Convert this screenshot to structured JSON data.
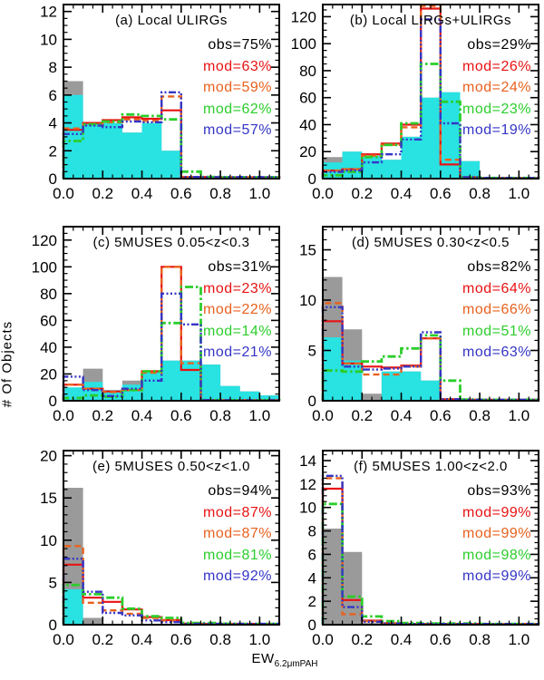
{
  "figure": {
    "ylabel": "# Of Objects",
    "xlabel_main": "EW",
    "xlabel_sub": "6.2μmPAH"
  },
  "colors": {
    "black": "#000000",
    "gray": "#9a9a9a",
    "cyan": "#29e2e2",
    "red": "#e81212",
    "orange": "#e8611e",
    "green": "#2bce2b",
    "blue": "#3535c6"
  },
  "chart_data": [
    {
      "id": "a",
      "type": "histogram",
      "title": "(a) Local ULIRGs",
      "xlim": [
        0,
        1.1
      ],
      "ylim": [
        0,
        12.5
      ],
      "bin_start": 0,
      "bin_width": 0.1,
      "xticks": [
        0,
        0.2,
        0.4,
        0.6,
        0.8,
        1.0
      ],
      "yticks": [
        0,
        2,
        4,
        6,
        8,
        10,
        12
      ],
      "x_minor": 0.05,
      "y_minor": 0.5,
      "series": [
        {
          "name": "obs-all-gray",
          "style": "fill",
          "color_key": "gray",
          "values": [
            7,
            4,
            4,
            3.3,
            4,
            2,
            0,
            0,
            0,
            0,
            0
          ]
        },
        {
          "name": "obs-sub-cyan",
          "style": "fill",
          "color_key": "cyan",
          "values": [
            6,
            4,
            4,
            3.3,
            4,
            2,
            0,
            0,
            0,
            0,
            0
          ]
        },
        {
          "name": "model-red",
          "style": "solid",
          "color_key": "red",
          "values": [
            3.5,
            4.0,
            4.2,
            4.4,
            4.3,
            4.9,
            0.12,
            0.12,
            0.1,
            0.1,
            0.1
          ]
        },
        {
          "name": "model-orange",
          "style": "dashed",
          "color_key": "orange",
          "values": [
            3.6,
            3.9,
            4.05,
            4.25,
            4.15,
            5.9,
            0.12,
            0.1,
            0.1,
            0.1,
            0.1
          ]
        },
        {
          "name": "model-green",
          "style": "dashdot",
          "color_key": "green",
          "values": [
            2.7,
            3.9,
            4.1,
            4.6,
            4.5,
            4.25,
            0.5,
            0.12,
            0.1,
            0.1,
            0.1
          ]
        },
        {
          "name": "model-blue",
          "style": "dashdotdotdot",
          "color_key": "blue",
          "values": [
            3.2,
            3.8,
            3.7,
            4.1,
            4.05,
            6.2,
            0.12,
            0.1,
            0.1,
            0.12,
            0.1
          ]
        }
      ],
      "legend": [
        {
          "label": "obs=75%",
          "color_key": "black"
        },
        {
          "label": "mod=63%",
          "color_key": "red"
        },
        {
          "label": "mod=59%",
          "color_key": "orange"
        },
        {
          "label": "mod=62%",
          "color_key": "green"
        },
        {
          "label": "mod=57%",
          "color_key": "blue"
        }
      ]
    },
    {
      "id": "b",
      "type": "histogram",
      "title": "(b) Local LIRGs+ULIRGs",
      "xlim": [
        0,
        1.1
      ],
      "ylim": [
        0,
        129
      ],
      "bin_start": 0,
      "bin_width": 0.1,
      "xticks": [
        0,
        0.2,
        0.4,
        0.6,
        0.8,
        1.0
      ],
      "yticks": [
        0,
        20,
        40,
        60,
        80,
        100,
        120
      ],
      "x_minor": 0.05,
      "y_minor": 5,
      "series": [
        {
          "name": "obs-all-gray",
          "style": "fill",
          "color_key": "gray",
          "values": [
            16,
            20,
            17,
            14,
            31,
            60,
            64,
            13,
            0,
            0,
            0
          ]
        },
        {
          "name": "obs-sub-cyan",
          "style": "fill",
          "color_key": "cyan",
          "values": [
            12,
            20,
            17,
            14,
            31,
            60,
            64,
            13,
            0,
            0,
            0
          ]
        },
        {
          "name": "model-red",
          "style": "solid",
          "color_key": "red",
          "values": [
            6,
            7,
            18,
            26,
            40,
            126,
            10.5,
            1,
            0.5,
            0.5,
            0.5
          ]
        },
        {
          "name": "model-orange",
          "style": "dashed",
          "color_key": "orange",
          "values": [
            6,
            7,
            17,
            25,
            38,
            128,
            14,
            1,
            0.5,
            0.5,
            0.5
          ]
        },
        {
          "name": "model-green",
          "style": "dashdot",
          "color_key": "green",
          "values": [
            2.5,
            5,
            16,
            25,
            41,
            85,
            57,
            1,
            0.5,
            0.5,
            0.5
          ]
        },
        {
          "name": "model-blue",
          "style": "dashdotdotdot",
          "color_key": "blue",
          "values": [
            5,
            6,
            12,
            18,
            29,
            118,
            41,
            1,
            0.5,
            0.5,
            0.5
          ]
        }
      ],
      "legend": [
        {
          "label": "obs=29%",
          "color_key": "black"
        },
        {
          "label": "mod=26%",
          "color_key": "red"
        },
        {
          "label": "mod=24%",
          "color_key": "orange"
        },
        {
          "label": "mod=23%",
          "color_key": "green"
        },
        {
          "label": "mod=19%",
          "color_key": "blue"
        }
      ]
    },
    {
      "id": "c",
      "type": "histogram",
      "title": "(c) 5MUSES 0.05<z<0.3",
      "xlim": [
        0,
        1.1
      ],
      "ylim": [
        0,
        130
      ],
      "bin_start": 0,
      "bin_width": 0.1,
      "xticks": [
        0,
        0.2,
        0.4,
        0.6,
        0.8,
        1.0
      ],
      "yticks": [
        0,
        20,
        40,
        60,
        80,
        100,
        120
      ],
      "x_minor": 0.05,
      "y_minor": 5,
      "series": [
        {
          "name": "obs-all-gray",
          "style": "fill",
          "color_key": "gray",
          "values": [
            8,
            24,
            4,
            15,
            22,
            30,
            30,
            27,
            11,
            7,
            4
          ]
        },
        {
          "name": "obs-sub-cyan",
          "style": "fill",
          "color_key": "cyan",
          "values": [
            10,
            14,
            8,
            12,
            22,
            30,
            30,
            27,
            11,
            7,
            4
          ]
        },
        {
          "name": "model-red",
          "style": "solid",
          "color_key": "red",
          "values": [
            12,
            9,
            7,
            8,
            22,
            100,
            23,
            0.5,
            0.4,
            0.4,
            0.4
          ]
        },
        {
          "name": "model-orange",
          "style": "dashed",
          "color_key": "orange",
          "values": [
            12,
            9,
            6.5,
            8,
            21,
            100,
            28,
            0.5,
            0.4,
            0.4,
            0.4
          ]
        },
        {
          "name": "model-green",
          "style": "dashdot",
          "color_key": "green",
          "values": [
            2,
            4,
            3,
            8,
            22,
            58,
            85,
            0.5,
            0.4,
            0.4,
            0.4
          ]
        },
        {
          "name": "model-blue",
          "style": "dashdotdotdot",
          "color_key": "blue",
          "values": [
            18,
            8,
            3.5,
            9,
            15,
            80,
            57,
            0.5,
            0.4,
            0.4,
            0.4
          ]
        }
      ],
      "legend": [
        {
          "label": "obs=31%",
          "color_key": "black"
        },
        {
          "label": "mod=23%",
          "color_key": "red"
        },
        {
          "label": "mod=22%",
          "color_key": "orange"
        },
        {
          "label": "mod=14%",
          "color_key": "green"
        },
        {
          "label": "mod=21%",
          "color_key": "blue"
        }
      ]
    },
    {
      "id": "d",
      "type": "histogram",
      "title": "(d) 5MUSES 0.30<z<0.5",
      "xlim": [
        0,
        1.1
      ],
      "ylim": [
        0,
        17.3
      ],
      "bin_start": 0,
      "bin_width": 0.1,
      "xticks": [
        0,
        0.2,
        0.4,
        0.6,
        0.8,
        1.0
      ],
      "yticks": [
        0,
        5,
        10,
        15
      ],
      "x_minor": 0.05,
      "y_minor": 1,
      "series": [
        {
          "name": "obs-all-gray",
          "style": "fill",
          "color_key": "gray",
          "values": [
            12.3,
            7.1,
            0.7,
            2.9,
            2.9,
            2,
            0,
            0,
            0,
            0,
            0
          ]
        },
        {
          "name": "obs-sub-cyan",
          "style": "fill",
          "color_key": "cyan",
          "values": [
            6.3,
            4,
            0,
            2.9,
            2.9,
            2,
            0,
            0,
            0,
            0,
            0
          ]
        },
        {
          "name": "model-red",
          "style": "solid",
          "color_key": "red",
          "values": [
            7.9,
            3.7,
            3.4,
            3.3,
            3.5,
            6.2,
            0.15,
            0.1,
            0.1,
            0.1,
            0.1
          ]
        },
        {
          "name": "model-orange",
          "style": "dashed",
          "color_key": "orange",
          "values": [
            9.7,
            3.7,
            2.6,
            2.6,
            3.4,
            6.2,
            0.15,
            0.1,
            0.1,
            0.1,
            0.1
          ]
        },
        {
          "name": "model-green",
          "style": "dashdot",
          "color_key": "green",
          "values": [
            3.0,
            2.9,
            3.9,
            4.4,
            5.2,
            6.5,
            2.0,
            0.12,
            0.1,
            0.1,
            0.1
          ]
        },
        {
          "name": "model-blue",
          "style": "dashdotdotdot",
          "color_key": "blue",
          "values": [
            9.3,
            3.4,
            3.1,
            3.2,
            3.4,
            6.8,
            0.15,
            0.1,
            0.1,
            0.1,
            0.1
          ]
        }
      ],
      "legend": [
        {
          "label": "obs=82%",
          "color_key": "black"
        },
        {
          "label": "mod=64%",
          "color_key": "red"
        },
        {
          "label": "mod=66%",
          "color_key": "orange"
        },
        {
          "label": "mod=51%",
          "color_key": "green"
        },
        {
          "label": "mod=63%",
          "color_key": "blue"
        }
      ]
    },
    {
      "id": "e",
      "type": "histogram",
      "title": "(e) 5MUSES 0.50<z<1.0",
      "xlim": [
        0,
        1.1
      ],
      "ylim": [
        0,
        20.6
      ],
      "bin_start": 0,
      "bin_width": 0.1,
      "xticks": [
        0,
        0.2,
        0.4,
        0.6,
        0.8,
        1.0
      ],
      "yticks": [
        0,
        5,
        10,
        15,
        20
      ],
      "x_minor": 0.05,
      "y_minor": 1,
      "series": [
        {
          "name": "obs-all-gray",
          "style": "fill",
          "color_key": "gray",
          "values": [
            16.2,
            0.8,
            0,
            0,
            0,
            0,
            0,
            0,
            0,
            0,
            0
          ]
        },
        {
          "name": "obs-sub-cyan",
          "style": "fill",
          "color_key": "cyan",
          "values": [
            4.2,
            0,
            0,
            0,
            0,
            0,
            0,
            0,
            0,
            0,
            0
          ]
        },
        {
          "name": "model-red",
          "style": "solid",
          "color_key": "red",
          "values": [
            7.1,
            3.2,
            2.7,
            1.8,
            0.9,
            0.55,
            0.12,
            0.1,
            0.1,
            0.1,
            0.1
          ]
        },
        {
          "name": "model-orange",
          "style": "dashed",
          "color_key": "orange",
          "values": [
            9.3,
            2.6,
            1.7,
            1.3,
            0.8,
            0.5,
            0.1,
            0.1,
            0.1,
            0.1,
            0.1
          ]
        },
        {
          "name": "model-green",
          "style": "dashdot",
          "color_key": "green",
          "values": [
            4.7,
            3.6,
            3.2,
            1.9,
            1.0,
            0.8,
            0.2,
            0.2,
            0.12,
            0.1,
            0.1
          ]
        },
        {
          "name": "model-blue",
          "style": "dashdotdotdot",
          "color_key": "blue",
          "values": [
            7.8,
            3.9,
            1.4,
            1.1,
            0.5,
            0.3,
            0.1,
            0.1,
            0.1,
            0.1,
            0.1
          ]
        }
      ],
      "legend": [
        {
          "label": "obs=94%",
          "color_key": "black"
        },
        {
          "label": "mod=87%",
          "color_key": "red"
        },
        {
          "label": "mod=87%",
          "color_key": "orange"
        },
        {
          "label": "mod=81%",
          "color_key": "green"
        },
        {
          "label": "mod=92%",
          "color_key": "blue"
        }
      ]
    },
    {
      "id": "f",
      "type": "histogram",
      "title": "(f) 5MUSES 1.00<z<2.0",
      "xlim": [
        0,
        1.1
      ],
      "ylim": [
        0,
        14.85
      ],
      "bin_start": 0,
      "bin_width": 0.1,
      "xticks": [
        0,
        0.2,
        0.4,
        0.6,
        0.8,
        1.0
      ],
      "yticks": [
        0,
        2,
        4,
        6,
        8,
        10,
        12,
        14
      ],
      "x_minor": 0.05,
      "y_minor": 0.5,
      "series": [
        {
          "name": "obs-all-gray",
          "style": "fill",
          "color_key": "gray",
          "values": [
            8.2,
            6.2,
            0.15,
            0,
            0,
            0,
            0,
            0,
            0,
            0,
            0
          ]
        },
        {
          "name": "obs-sub-cyan",
          "style": "fill",
          "color_key": "cyan",
          "values": [
            0,
            0,
            0,
            0,
            0,
            0,
            0,
            0,
            0,
            0,
            0
          ]
        },
        {
          "name": "model-red",
          "style": "solid",
          "color_key": "red",
          "values": [
            11.6,
            2.1,
            0.35,
            0.12,
            0.06,
            0.06,
            0.06,
            0.06,
            0.06,
            0.06,
            0.06
          ]
        },
        {
          "name": "model-orange",
          "style": "dashed",
          "color_key": "orange",
          "values": [
            12.5,
            0.9,
            0.3,
            0.1,
            0.06,
            0.06,
            0.06,
            0.06,
            0.06,
            0.06,
            0.06
          ]
        },
        {
          "name": "model-green",
          "style": "dashdot",
          "color_key": "green",
          "values": [
            10.3,
            2.4,
            0.7,
            0.3,
            0.15,
            0.1,
            0.1,
            0.1,
            0.06,
            0.06,
            0.06
          ]
        },
        {
          "name": "model-blue",
          "style": "dashdotdotdot",
          "color_key": "blue",
          "values": [
            12.7,
            1.5,
            0.25,
            0.1,
            0.06,
            0.06,
            0.06,
            0.06,
            0.06,
            0.06,
            0.06
          ]
        }
      ],
      "legend": [
        {
          "label": "obs=93%",
          "color_key": "black"
        },
        {
          "label": "mod=99%",
          "color_key": "red"
        },
        {
          "label": "mod=99%",
          "color_key": "orange"
        },
        {
          "label": "mod=98%",
          "color_key": "green"
        },
        {
          "label": "mod=99%",
          "color_key": "blue"
        }
      ]
    }
  ]
}
